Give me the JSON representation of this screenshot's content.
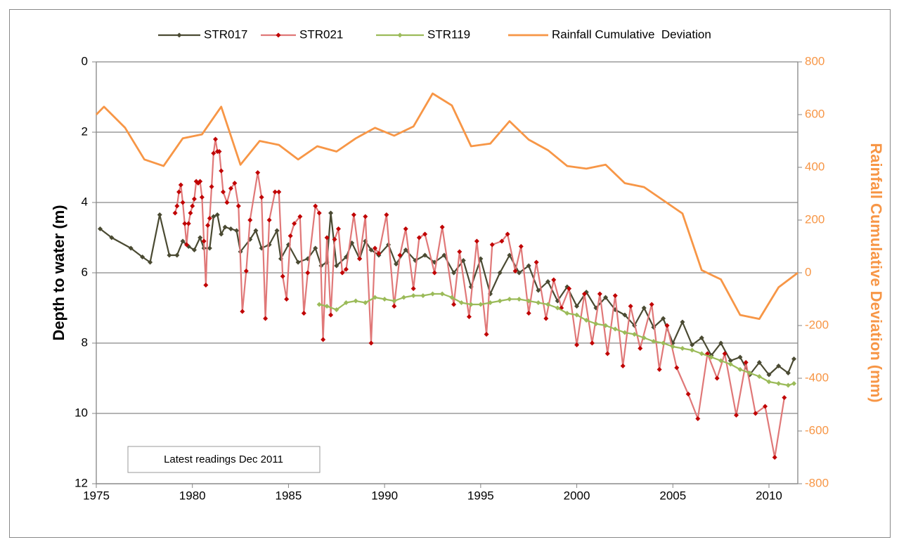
{
  "chart_data": {
    "type": "line",
    "ylabel": "Depth to water (m)",
    "y2label": "Rainfall Cumulative Deviation (mm)",
    "annotation": "Latest readings Dec 2011",
    "xlim": [
      1975,
      2011.5
    ],
    "xticks": [
      1975,
      1980,
      1985,
      1990,
      1995,
      2000,
      2005,
      2010
    ],
    "ylim": [
      0,
      12
    ],
    "y_reversed": true,
    "yticks": [
      0,
      2,
      4,
      6,
      8,
      10,
      12
    ],
    "y2lim": [
      -800,
      800
    ],
    "y2ticks": [
      800,
      600,
      400,
      200,
      0,
      -200,
      -400,
      -600,
      -800
    ],
    "grid": true,
    "legend": "top",
    "series": [
      {
        "name": "STR017",
        "color": "#4a4a32",
        "marker_color": "#4a4a32",
        "x": [
          1975.2,
          1975.8,
          1976.8,
          1977.4,
          1977.8,
          1978.3,
          1978.8,
          1979.2,
          1979.5,
          1979.8,
          1980.1,
          1980.4,
          1980.6,
          1980.9,
          1981.1,
          1981.3,
          1981.5,
          1981.7,
          1982,
          1982.3,
          1982.5,
          1983,
          1983.3,
          1983.6,
          1984,
          1984.4,
          1984.6,
          1985,
          1985.5,
          1986,
          1986.4,
          1986.7,
          1987,
          1987.2,
          1987.5,
          1988,
          1988.3,
          1988.7,
          1989,
          1989.3,
          1989.7,
          1990.2,
          1990.6,
          1991.1,
          1991.6,
          1992.1,
          1992.6,
          1993.1,
          1993.6,
          1994.1,
          1994.5,
          1995,
          1995.5,
          1996,
          1996.5,
          1997,
          1997.5,
          1998,
          1998.5,
          1999,
          1999.5,
          2000,
          2000.5,
          2001,
          2001.5,
          2002,
          2002.5,
          2003,
          2003.5,
          2004,
          2004.5,
          2005,
          2005.5,
          2006,
          2006.5,
          2007,
          2007.5,
          2008,
          2008.5,
          2009,
          2009.5,
          2010,
          2010.5,
          2011,
          2011.3
        ],
        "values": [
          4.75,
          5.0,
          5.3,
          5.55,
          5.7,
          4.35,
          5.5,
          5.5,
          5.1,
          5.25,
          5.35,
          5.0,
          5.3,
          5.3,
          4.4,
          4.35,
          4.9,
          4.7,
          4.75,
          4.8,
          5.4,
          5.05,
          4.8,
          5.3,
          5.2,
          4.8,
          5.6,
          5.2,
          5.7,
          5.6,
          5.3,
          5.8,
          5.7,
          4.3,
          5.8,
          5.55,
          5.15,
          5.6,
          5.1,
          5.35,
          5.5,
          5.2,
          5.75,
          5.35,
          5.65,
          5.5,
          5.7,
          5.5,
          6.0,
          5.65,
          6.4,
          5.6,
          6.6,
          6.0,
          5.5,
          6.0,
          5.8,
          6.5,
          6.25,
          6.8,
          6.4,
          6.95,
          6.55,
          7.0,
          6.7,
          7.05,
          7.2,
          7.5,
          7.0,
          7.55,
          7.3,
          8.0,
          7.4,
          8.05,
          7.85,
          8.35,
          8.0,
          8.5,
          8.4,
          8.9,
          8.55,
          8.9,
          8.65,
          8.85,
          8.45
        ]
      },
      {
        "name": "STR021",
        "color": "#e07878",
        "marker_color": "#c00000",
        "x": [
          1979.1,
          1979.2,
          1979.3,
          1979.4,
          1979.5,
          1979.6,
          1979.7,
          1979.8,
          1979.9,
          1980,
          1980.1,
          1980.2,
          1980.3,
          1980.4,
          1980.5,
          1980.6,
          1980.7,
          1980.8,
          1980.9,
          1981,
          1981.1,
          1981.2,
          1981.3,
          1981.4,
          1981.5,
          1981.6,
          1981.8,
          1982,
          1982.2,
          1982.4,
          1982.6,
          1982.8,
          1983,
          1983.4,
          1983.6,
          1983.8,
          1984,
          1984.3,
          1984.5,
          1984.7,
          1984.9,
          1985.1,
          1985.3,
          1985.6,
          1985.8,
          1986,
          1986.4,
          1986.6,
          1986.8,
          1987,
          1987.2,
          1987.4,
          1987.6,
          1987.8,
          1988,
          1988.4,
          1988.7,
          1989,
          1989.3,
          1989.5,
          1989.7,
          1990.1,
          1990.5,
          1990.8,
          1991.1,
          1991.5,
          1991.8,
          1992.1,
          1992.6,
          1993,
          1993.6,
          1993.9,
          1994.4,
          1994.8,
          1995.3,
          1995.6,
          1996.1,
          1996.4,
          1996.8,
          1997.1,
          1997.5,
          1997.9,
          1998.4,
          1998.8,
          1999.2,
          1999.6,
          2000,
          2000.4,
          2000.8,
          2001.2,
          2001.6,
          2002,
          2002.4,
          2002.8,
          2003.3,
          2003.9,
          2004.3,
          2004.7,
          2005.2,
          2005.8,
          2006.3,
          2006.8,
          2007.3,
          2007.7,
          2008.3,
          2008.8,
          2009.3,
          2009.8,
          2010.3,
          2010.8
        ],
        "values": [
          4.3,
          4.1,
          3.7,
          3.5,
          4.0,
          4.6,
          5.2,
          4.6,
          4.3,
          4.1,
          3.9,
          3.4,
          3.45,
          3.4,
          3.85,
          5.1,
          6.35,
          4.65,
          4.45,
          3.55,
          2.6,
          2.2,
          2.55,
          2.55,
          3.1,
          3.7,
          4.0,
          3.6,
          3.45,
          4.1,
          7.1,
          5.95,
          4.5,
          3.15,
          3.85,
          7.3,
          4.5,
          3.7,
          3.7,
          6.1,
          6.75,
          4.95,
          4.6,
          4.4,
          7.15,
          6.0,
          4.1,
          4.3,
          7.9,
          5.0,
          7.2,
          5.05,
          4.75,
          6.0,
          5.9,
          4.35,
          5.6,
          4.4,
          8.0,
          5.3,
          5.45,
          4.35,
          6.95,
          5.5,
          4.75,
          6.45,
          5.0,
          4.9,
          6.0,
          4.7,
          6.9,
          5.4,
          7.25,
          5.1,
          7.75,
          5.2,
          5.1,
          4.9,
          5.95,
          5.25,
          7.15,
          5.7,
          7.3,
          6.2,
          7.0,
          6.45,
          8.05,
          6.6,
          8.0,
          6.6,
          8.3,
          6.65,
          8.65,
          6.95,
          8.15,
          6.9,
          8.75,
          7.5,
          8.7,
          9.45,
          10.15,
          8.3,
          9.0,
          8.3,
          10.05,
          8.55,
          10.0,
          9.8,
          11.25,
          9.55
        ]
      },
      {
        "name": "STR119",
        "color": "#9bbb59",
        "marker_color": "#9bbb59",
        "x": [
          1986.6,
          1987,
          1987.5,
          1988,
          1988.5,
          1989,
          1989.5,
          1990,
          1990.5,
          1991,
          1991.5,
          1992,
          1992.5,
          1993,
          1993.5,
          1994,
          1994.5,
          1995,
          1995.5,
          1996,
          1996.5,
          1997,
          1997.5,
          1998,
          1998.5,
          1999,
          1999.5,
          2000,
          2000.5,
          2001,
          2001.5,
          2002,
          2002.5,
          2003,
          2003.5,
          2004,
          2004.5,
          2005,
          2005.5,
          2006,
          2006.5,
          2007,
          2007.5,
          2008,
          2008.5,
          2009,
          2009.5,
          2010,
          2010.5,
          2011,
          2011.3
        ],
        "values": [
          6.9,
          6.95,
          7.05,
          6.85,
          6.8,
          6.85,
          6.7,
          6.75,
          6.8,
          6.7,
          6.65,
          6.65,
          6.6,
          6.6,
          6.7,
          6.85,
          6.9,
          6.9,
          6.85,
          6.8,
          6.75,
          6.75,
          6.8,
          6.85,
          6.9,
          7.0,
          7.15,
          7.2,
          7.35,
          7.45,
          7.5,
          7.6,
          7.7,
          7.75,
          7.85,
          7.95,
          8.0,
          8.1,
          8.15,
          8.2,
          8.3,
          8.4,
          8.5,
          8.6,
          8.75,
          8.85,
          8.95,
          9.1,
          9.15,
          9.2,
          9.15
        ]
      },
      {
        "name": "Rainfall Cumulative  Deviation",
        "color": "#f79646",
        "axis": "y2",
        "x": [
          1975,
          1975.4,
          1976.5,
          1977.5,
          1978.5,
          1979.5,
          1980.5,
          1981.5,
          1982.5,
          1983.5,
          1984.5,
          1985.5,
          1986.5,
          1987.5,
          1988.5,
          1989.5,
          1990.5,
          1991.5,
          1992.5,
          1993.5,
          1994.5,
          1995.5,
          1996.5,
          1997.5,
          1998.5,
          1999.5,
          2000.5,
          2001.5,
          2002.5,
          2003.5,
          2004.5,
          2005.5,
          2006.5,
          2007.5,
          2008.5,
          2009.5,
          2010.5,
          2011.5
        ],
        "values": [
          600,
          630,
          550,
          430,
          405,
          510,
          525,
          630,
          410,
          500,
          485,
          430,
          480,
          460,
          510,
          550,
          520,
          555,
          680,
          635,
          480,
          490,
          575,
          505,
          465,
          405,
          395,
          410,
          340,
          325,
          275,
          225,
          10,
          -25,
          -160,
          -175,
          -55,
          0
        ]
      }
    ]
  }
}
